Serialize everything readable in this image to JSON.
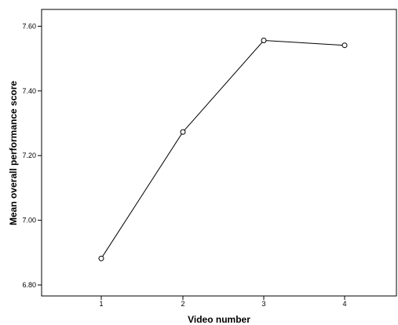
{
  "chart_data": {
    "type": "line",
    "title": "",
    "xlabel": "Video number",
    "ylabel": "Mean overall performance score",
    "categories": [
      "1",
      "2",
      "3",
      "4"
    ],
    "series": [
      {
        "values": [
          6.882,
          7.273,
          7.556,
          7.541
        ]
      }
    ],
    "y_ticks": [
      "6.80",
      "7.00",
      "7.20",
      "7.40",
      "7.60"
    ],
    "ylim": [
      6.766,
      7.652
    ],
    "grid": false,
    "legend": "none",
    "marker": "open-circle",
    "line_color": "#000000"
  }
}
